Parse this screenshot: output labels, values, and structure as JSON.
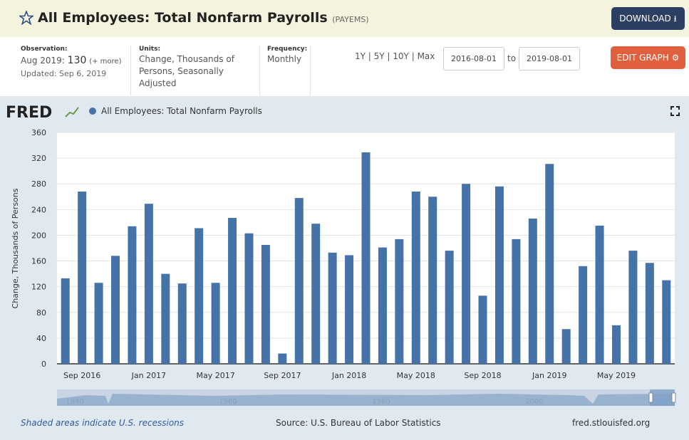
{
  "header": {
    "title": "All Employees: Total Nonfarm Payrolls",
    "series_id": "(PAYEMS)",
    "download": "DOWNLOAD"
  },
  "info": {
    "observation_label": "Observation:",
    "observation_date": "Aug 2019:",
    "observation_value": 130,
    "more": "(+ more)",
    "updated": "Updated: Sep 6, 2019",
    "units_label": "Units:",
    "units": "Change, Thousands of Persons, Seasonally Adjusted",
    "frequency_label": "Frequency:",
    "frequency": "Monthly",
    "ranges": [
      "1Y",
      "5Y",
      "10Y",
      "Max"
    ],
    "start": "2016-08-01",
    "to": "to",
    "end": "2019-08-01",
    "edit": "EDIT GRAPH"
  },
  "chart_data": {
    "type": "bar",
    "logo": "FRED",
    "y_label": "Change, Thousands of Persons",
    "color": "#4572a7",
    "series": [
      {
        "name": "All Employees: Total Nonfarm Payrolls",
        "color": "#4572a7",
        "values": [
          133,
          268,
          126,
          168,
          214,
          249,
          140,
          125,
          211,
          126,
          227,
          203,
          185,
          16,
          258,
          218,
          173,
          169,
          329,
          181,
          194,
          268,
          260,
          176,
          280,
          106,
          276,
          194,
          226,
          311,
          54,
          152,
          215,
          60,
          176,
          157,
          130
        ]
      }
    ],
    "categories": [
      null,
      "Sep 2016",
      null,
      null,
      null,
      "Jan 2017",
      null,
      null,
      null,
      "May 2017",
      null,
      null,
      null,
      "Sep 2017",
      null,
      null,
      null,
      "Jan 2018",
      null,
      null,
      null,
      "May 2018",
      null,
      null,
      null,
      "Sep 2018",
      null,
      null,
      null,
      "Jan 2019",
      null,
      null,
      null,
      "May 2019",
      null,
      null,
      null
    ],
    "ylim": [
      0,
      360
    ],
    "yticks": [
      0,
      40,
      80,
      120,
      160,
      200,
      240,
      280,
      320,
      360
    ],
    "grid": true,
    "navigator_labels": [
      "1940",
      "1960",
      "1980",
      "2000"
    ]
  },
  "footer": {
    "recessions": "Shaded areas indicate U.S. recessions",
    "source": "Source: U.S. Bureau of Labor Statistics",
    "site": "fred.stlouisfed.org"
  }
}
